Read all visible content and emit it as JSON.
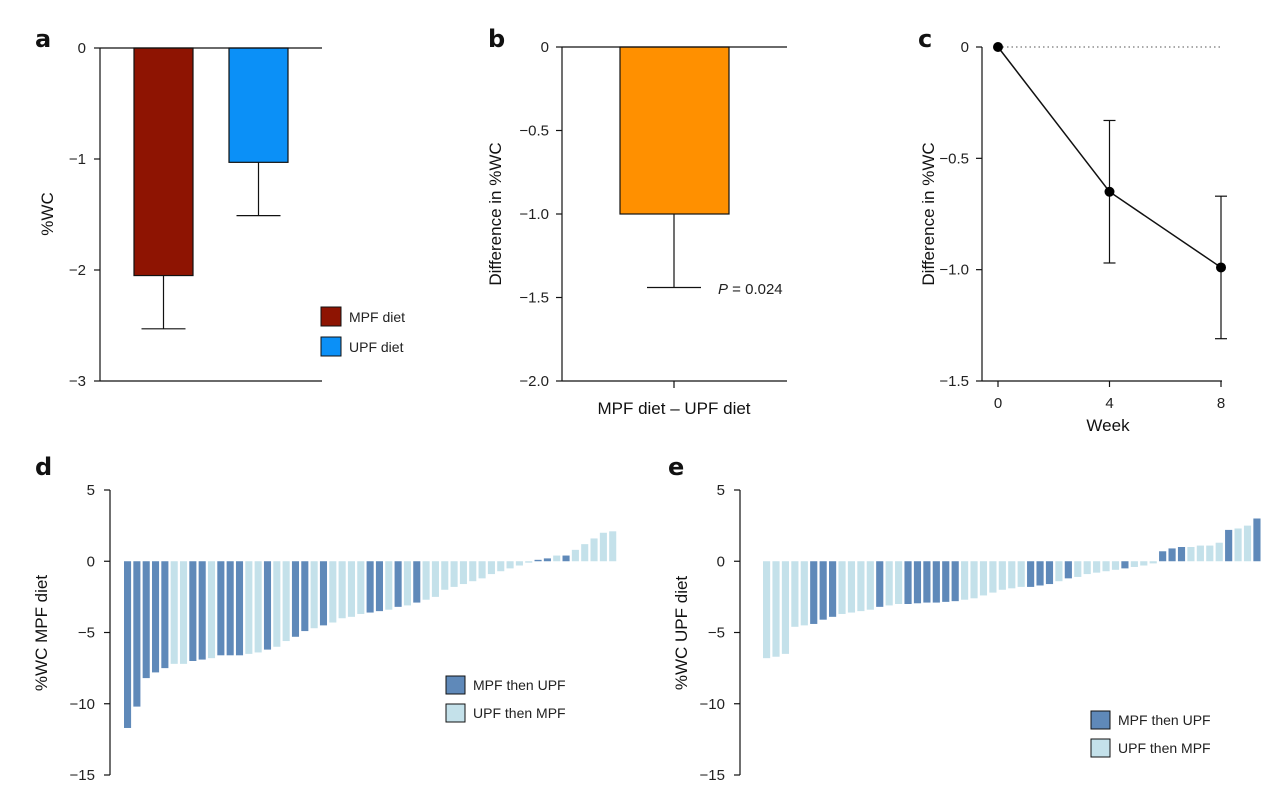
{
  "chart_data": [
    {
      "panel": "a",
      "type": "bar",
      "ylabel": "%WC",
      "ylim": [
        -3,
        0
      ],
      "yticks": [
        0,
        -1,
        -2,
        -3
      ],
      "categories": [
        "MPF diet",
        "UPF diet"
      ],
      "values": [
        -2.05,
        -1.03
      ],
      "errors": [
        0.48,
        0.48
      ],
      "colors": [
        "#8e1402",
        "#0b90f7"
      ],
      "legend": [
        {
          "label": "MPF diet",
          "color": "#8e1402"
        },
        {
          "label": "UPF diet",
          "color": "#0b90f7"
        }
      ]
    },
    {
      "panel": "b",
      "type": "bar",
      "ylabel": "Difference in %WC",
      "xlabel": "MPF diet – UPF diet",
      "ylim": [
        -2.0,
        0
      ],
      "yticks": [
        "0",
        "-0.5",
        "-1.0",
        "-1.5",
        "-2.0"
      ],
      "categories": [
        "MPF diet – UPF diet"
      ],
      "values": [
        -1.0
      ],
      "errors": [
        0.44
      ],
      "color": "#ff9000",
      "p_label": "P",
      "p_value": " = 0.024"
    },
    {
      "panel": "c",
      "type": "line",
      "ylabel": "Difference in %WC",
      "xlabel": "Week",
      "xlim": [
        0,
        8
      ],
      "ylim": [
        -1.5,
        0
      ],
      "xticks": [
        "0",
        "4",
        "8"
      ],
      "yticks": [
        "0",
        "-0.5",
        "-1.0",
        "-1.5"
      ],
      "x": [
        0,
        4,
        8
      ],
      "y": [
        0,
        -0.65,
        -0.99
      ],
      "errors": [
        0,
        0.32,
        0.32
      ],
      "reference_line": 0
    },
    {
      "panel": "d",
      "type": "bar",
      "ylabel": "%WC MPF diet",
      "ylim": [
        -15,
        5
      ],
      "yticks": [
        "5",
        "0",
        "-5",
        "-10",
        "-15"
      ],
      "values": [
        -11.7,
        -10.2,
        -8.2,
        -7.8,
        -7.5,
        -7.2,
        -7.2,
        -7.0,
        -6.9,
        -6.8,
        -6.6,
        -6.6,
        -6.6,
        -6.5,
        -6.4,
        -6.2,
        -6.0,
        -5.6,
        -5.3,
        -4.9,
        -4.7,
        -4.5,
        -4.3,
        -4.0,
        -3.9,
        -3.7,
        -3.6,
        -3.5,
        -3.4,
        -3.2,
        -3.1,
        -2.9,
        -2.7,
        -2.5,
        -2.0,
        -1.8,
        -1.6,
        -1.4,
        -1.2,
        -0.9,
        -0.7,
        -0.5,
        -0.3,
        -0.1,
        0.1,
        0.2,
        0.4,
        0.4,
        0.8,
        1.2,
        1.6,
        2.0,
        2.1
      ],
      "groups": [
        0,
        0,
        0,
        0,
        0,
        1,
        1,
        0,
        0,
        1,
        0,
        0,
        0,
        1,
        1,
        0,
        1,
        1,
        0,
        0,
        1,
        0,
        1,
        1,
        1,
        1,
        0,
        0,
        1,
        0,
        1,
        0,
        1,
        1,
        1,
        1,
        1,
        1,
        1,
        1,
        1,
        1,
        1,
        1,
        0,
        0,
        1,
        0,
        1,
        1,
        1,
        1,
        1
      ],
      "legend": [
        {
          "label": "MPF then UPF",
          "color": "#5f89b9"
        },
        {
          "label": "UPF then MPF",
          "color": "#c4e1ea"
        }
      ]
    },
    {
      "panel": "e",
      "type": "bar",
      "ylabel": "%WC UPF diet",
      "ylim": [
        -15,
        5
      ],
      "yticks": [
        "5",
        "0",
        "-5",
        "-10",
        "-15"
      ],
      "values": [
        -6.8,
        -6.7,
        -6.5,
        -4.6,
        -4.5,
        -4.4,
        -4.1,
        -3.9,
        -3.7,
        -3.6,
        -3.5,
        -3.4,
        -3.2,
        -3.1,
        -3.0,
        -3.0,
        -2.95,
        -2.9,
        -2.9,
        -2.85,
        -2.8,
        -2.7,
        -2.6,
        -2.4,
        -2.2,
        -2.0,
        -1.9,
        -1.8,
        -1.8,
        -1.7,
        -1.6,
        -1.4,
        -1.2,
        -1.1,
        -0.9,
        -0.8,
        -0.7,
        -0.6,
        -0.5,
        -0.4,
        -0.3,
        -0.15,
        0.7,
        0.9,
        1.0,
        1.0,
        1.1,
        1.1,
        1.3,
        2.2,
        2.3,
        2.5,
        3.0
      ],
      "groups": [
        1,
        1,
        1,
        1,
        1,
        0,
        0,
        0,
        1,
        1,
        1,
        1,
        0,
        1,
        1,
        0,
        0,
        0,
        0,
        0,
        0,
        1,
        1,
        1,
        1,
        1,
        1,
        1,
        0,
        0,
        0,
        1,
        0,
        1,
        1,
        1,
        1,
        1,
        0,
        1,
        1,
        1,
        0,
        0,
        0,
        1,
        1,
        1,
        1,
        0,
        1,
        1,
        0
      ],
      "legend": [
        {
          "label": "MPF then UPF",
          "color": "#5f89b9"
        },
        {
          "label": "UPF then MPF",
          "color": "#c4e1ea"
        }
      ]
    }
  ]
}
